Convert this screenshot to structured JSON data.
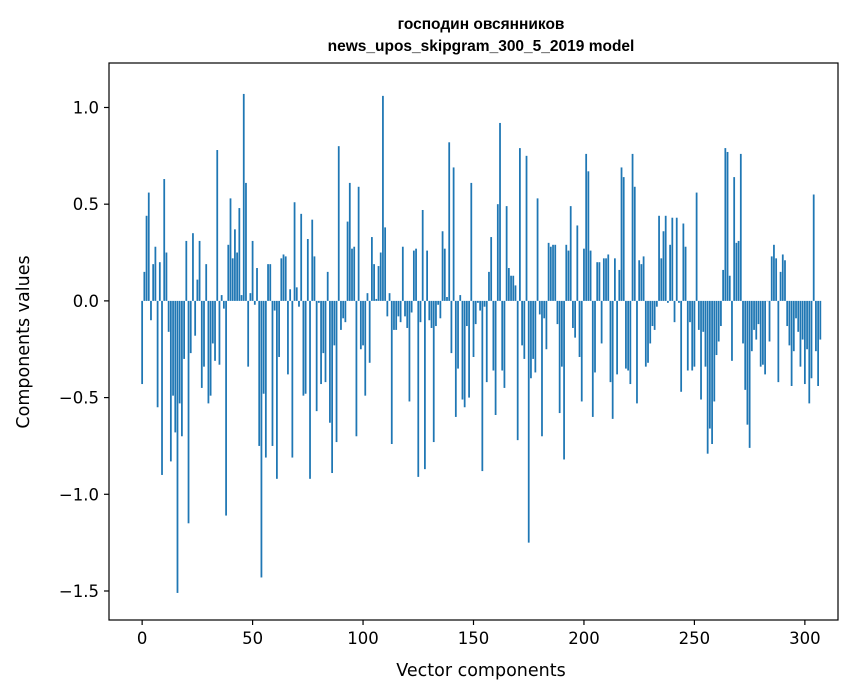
{
  "chart_data": {
    "type": "bar",
    "title": "господин овсянников",
    "subtitle": "news_upos_skipgram_300_5_2019 model",
    "xlabel": "Vector components",
    "ylabel": "Components values",
    "xlim": [
      -15,
      315
    ],
    "ylim": [
      -1.65,
      1.23
    ],
    "xticks": [
      0,
      50,
      100,
      150,
      200,
      250,
      300
    ],
    "xtick_labels": [
      "0",
      "50",
      "100",
      "150",
      "200",
      "250",
      "300"
    ],
    "yticks": [
      -1.5,
      -1.0,
      -0.5,
      0.0,
      0.5,
      1.0
    ],
    "ytick_labels": [
      "−1.5",
      "−1.0",
      "−0.5",
      "0.0",
      "0.5",
      "1.0"
    ],
    "bar_color": "#1f77b4",
    "grid": false,
    "values": [
      -0.43,
      0.15,
      0.44,
      0.56,
      -0.1,
      0.19,
      0.28,
      -0.55,
      0.2,
      -0.9,
      0.63,
      0.25,
      -0.16,
      -0.83,
      -0.49,
      -0.68,
      -1.51,
      -0.53,
      -0.7,
      -0.3,
      0.31,
      -1.15,
      -0.27,
      0.35,
      -0.18,
      0.11,
      0.31,
      -0.45,
      -0.34,
      0.19,
      -0.53,
      -0.49,
      -0.22,
      -0.31,
      0.78,
      -0.33,
      0.03,
      -0.04,
      -1.11,
      0.29,
      0.53,
      0.22,
      0.37,
      0.25,
      0.48,
      0.03,
      1.07,
      0.61,
      -0.34,
      0.04,
      0.31,
      -0.02,
      0.17,
      -0.75,
      -1.43,
      -0.48,
      -0.81,
      0.19,
      0.19,
      -0.75,
      -0.05,
      -0.92,
      -0.29,
      0.22,
      0.24,
      0.23,
      -0.38,
      0.06,
      -0.81,
      0.51,
      0.07,
      -0.03,
      0.45,
      -0.49,
      -0.48,
      0.32,
      -0.92,
      0.42,
      0.23,
      -0.57,
      -0.01,
      -0.43,
      -0.27,
      -0.42,
      0.15,
      -0.63,
      -0.89,
      -0.23,
      -0.73,
      0.8,
      -0.15,
      -0.09,
      -0.11,
      0.41,
      0.61,
      0.27,
      0.28,
      -0.7,
      0.59,
      -0.25,
      -0.23,
      -0.49,
      0.04,
      -0.32,
      0.33,
      0.19,
      0.01,
      0.18,
      0.25,
      1.06,
      0.38,
      -0.08,
      0.04,
      -0.74,
      -0.15,
      -0.15,
      -0.08,
      -0.11,
      0.28,
      -0.08,
      -0.14,
      -0.52,
      -0.06,
      0.26,
      0.27,
      -0.91,
      -0.11,
      0.47,
      -0.87,
      0.26,
      -0.1,
      -0.14,
      -0.73,
      -0.13,
      -0.02,
      -0.09,
      0.36,
      0.27,
      0.02,
      0.82,
      -0.27,
      0.69,
      -0.6,
      -0.35,
      0.03,
      -0.51,
      -0.55,
      -0.13,
      -0.5,
      0.61,
      -0.29,
      -0.12,
      -0.01,
      -0.05,
      -0.88,
      -0.03,
      -0.42,
      0.15,
      0.33,
      -0.36,
      -0.59,
      0.5,
      0.92,
      -0.36,
      -0.45,
      0.49,
      0.17,
      0.13,
      0.13,
      0.08,
      -0.72,
      0.79,
      -0.23,
      -0.3,
      0.75,
      -1.25,
      -0.4,
      -0.3,
      -0.37,
      0.53,
      -0.07,
      -0.7,
      -0.09,
      -0.25,
      0.3,
      0.28,
      0.29,
      0.29,
      -0.12,
      -0.58,
      -0.34,
      -0.82,
      0.29,
      0.26,
      0.49,
      -0.14,
      -0.19,
      0.39,
      -0.29,
      -0.52,
      0.27,
      0.76,
      0.67,
      0.26,
      -0.6,
      -0.37,
      0.2,
      0.2,
      -0.22,
      0.22,
      0.22,
      0.24,
      -0.42,
      -0.61,
      0.22,
      -0.38,
      0.16,
      0.69,
      0.64,
      -0.35,
      -0.36,
      -0.43,
      0.76,
      0.59,
      -0.53,
      0.21,
      0.19,
      0.23,
      -0.34,
      -0.32,
      -0.22,
      -0.13,
      -0.15,
      -0.03,
      0.44,
      0.22,
      0.36,
      0.44,
      -0.01,
      0.29,
      0.43,
      -0.11,
      0.43,
      -0.01,
      -0.47,
      0.4,
      0.28,
      -0.36,
      -0.11,
      -0.36,
      -0.34,
      0.56,
      -0.15,
      -0.51,
      -0.16,
      -0.34,
      -0.79,
      -0.66,
      -0.74,
      -0.52,
      -0.28,
      -0.21,
      -0.13,
      0.16,
      0.79,
      0.77,
      0.13,
      -0.31,
      0.64,
      0.3,
      0.31,
      0.76,
      -0.22,
      -0.46,
      -0.64,
      -0.76,
      -0.26,
      -0.15,
      -0.2,
      -0.12,
      -0.34,
      -0.33,
      -0.38,
      0.0,
      -0.21,
      0.23,
      0.29,
      0.22,
      -0.42,
      0.15,
      0.24,
      0.21,
      -0.13,
      -0.23,
      -0.44,
      -0.26,
      -0.09,
      -0.16,
      -0.34,
      -0.2,
      -0.43,
      -0.25,
      -0.53,
      -0.4,
      0.55,
      -0.26,
      -0.44,
      -0.2
    ]
  }
}
